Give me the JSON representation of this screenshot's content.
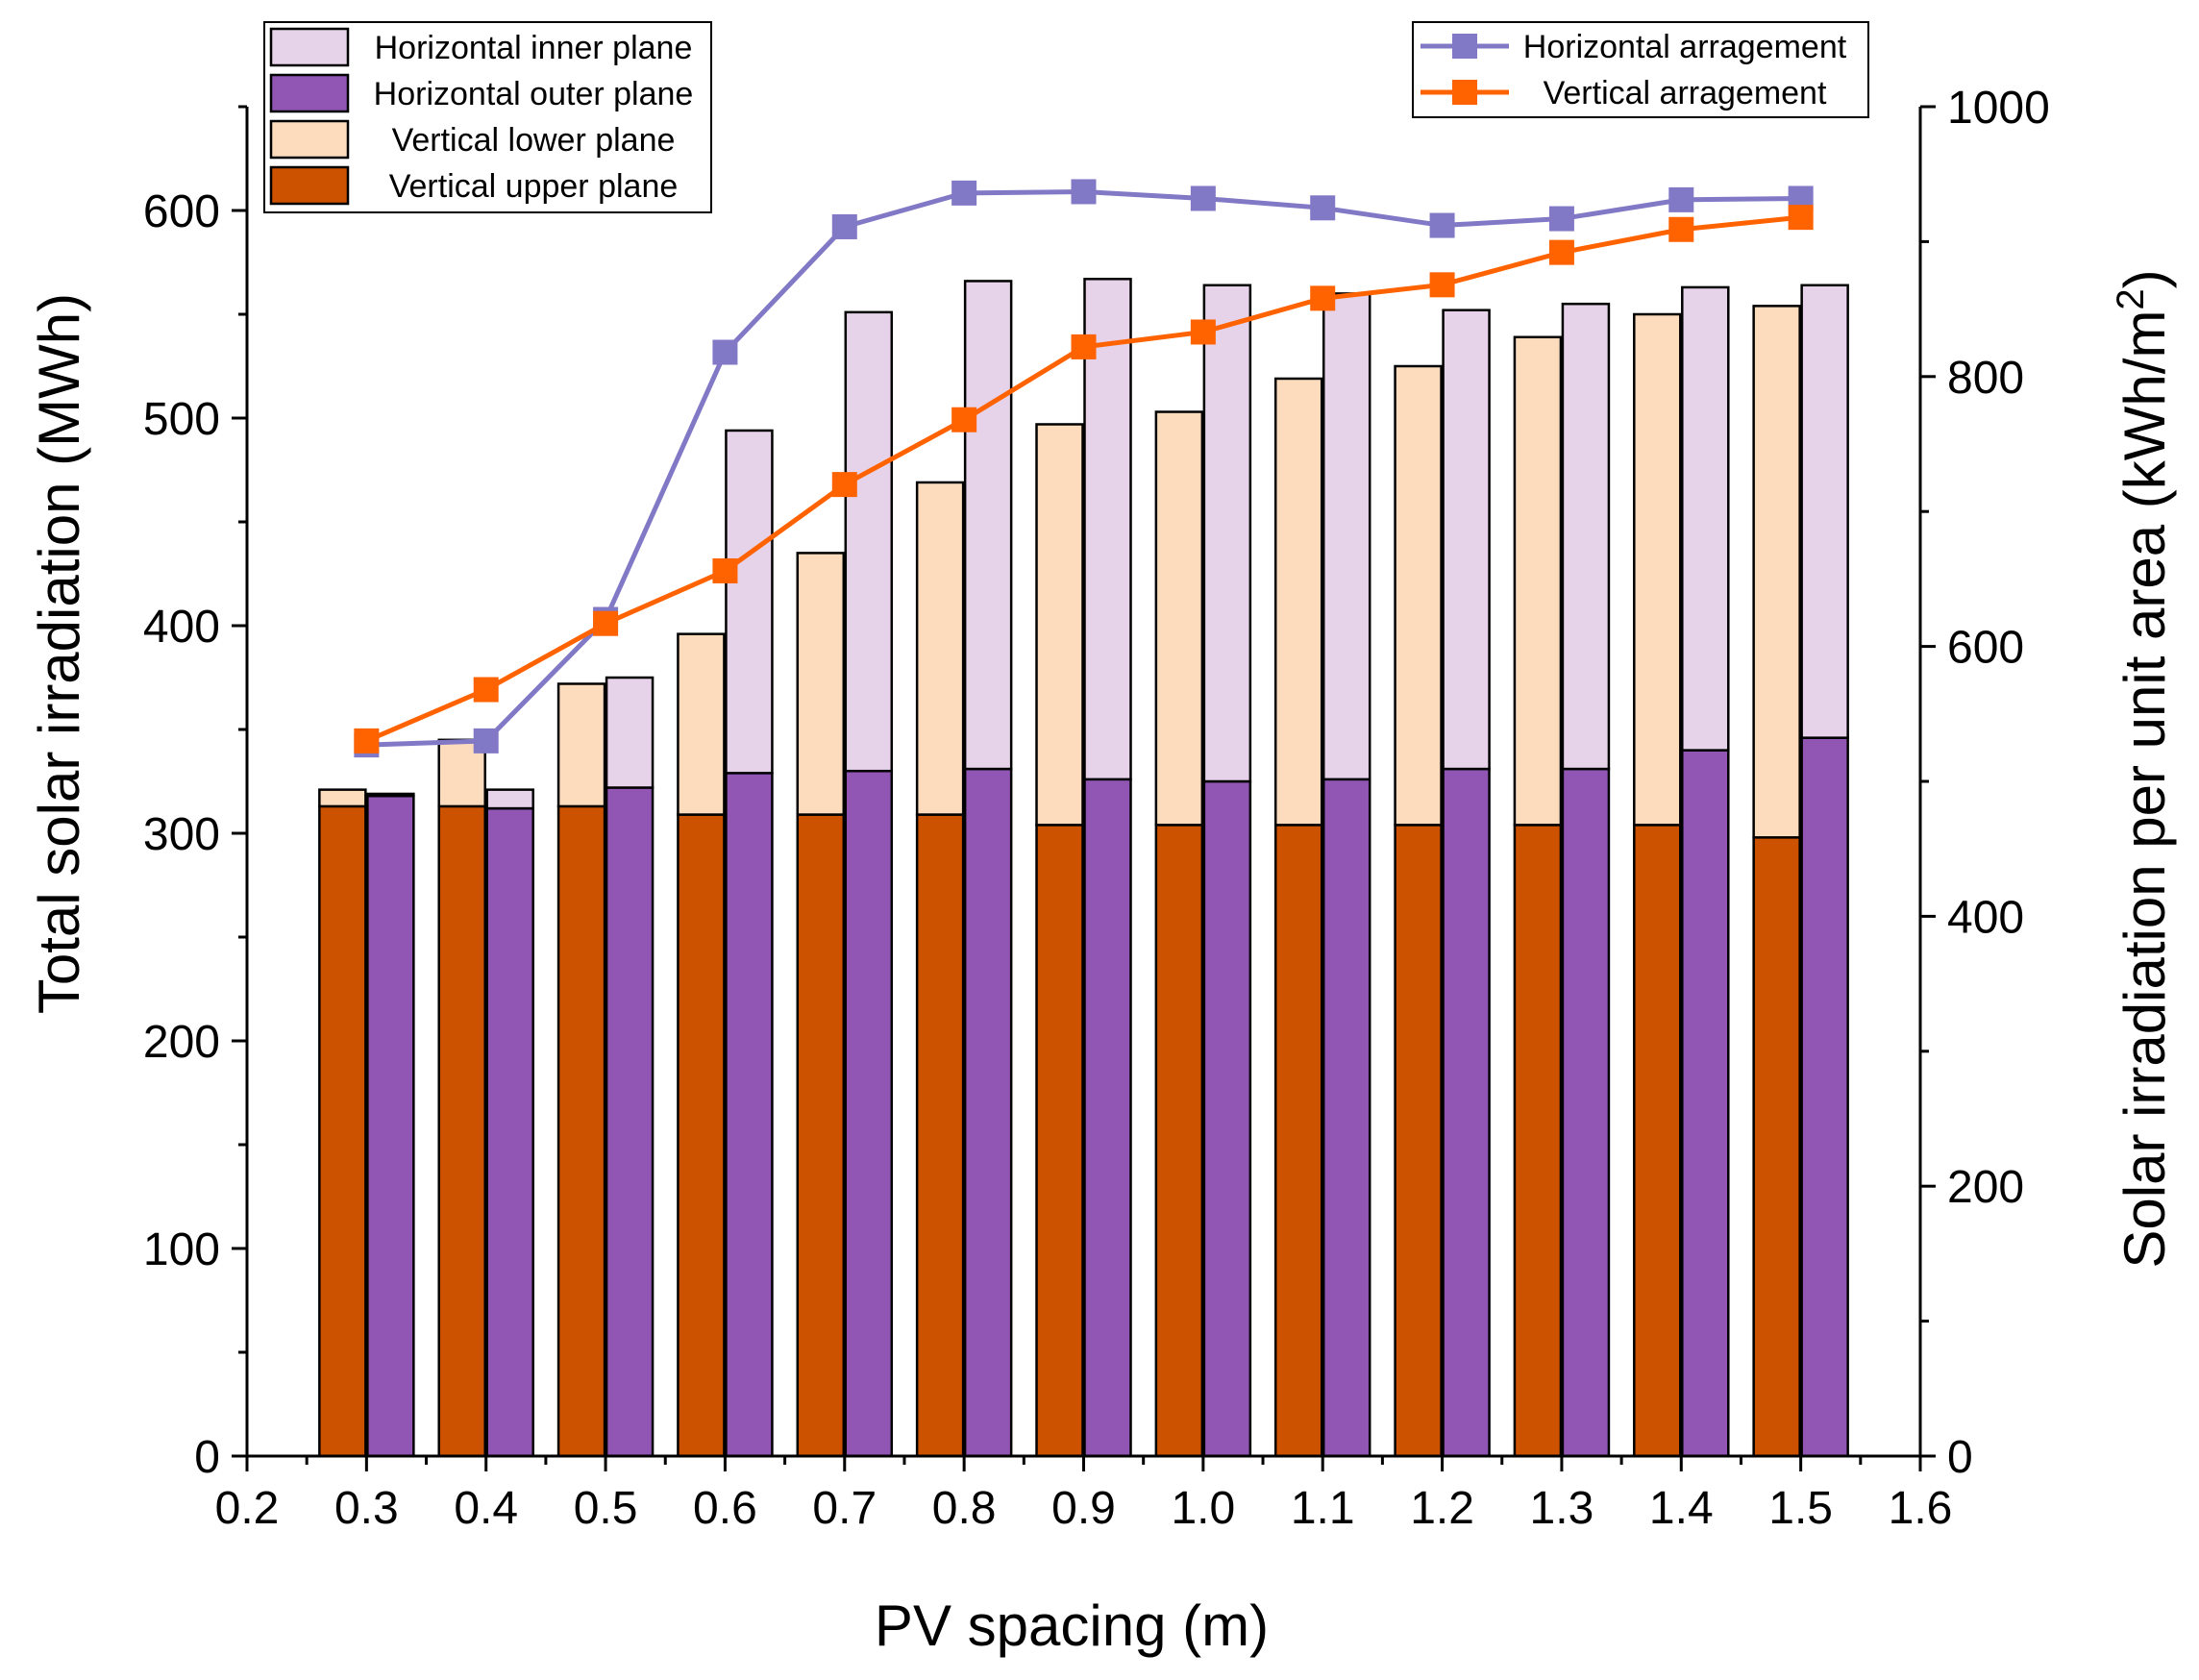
{
  "chart_data": {
    "type": "bar",
    "subtype": "stacked-grouped bar with dual-axis line overlay",
    "x": {
      "label": "PV spacing (m)",
      "range": [
        0.2,
        1.6
      ],
      "ticks": [
        0.2,
        0.3,
        0.4,
        0.5,
        0.6,
        0.7,
        0.8,
        0.9,
        1.0,
        1.1,
        1.2,
        1.3,
        1.4,
        1.5,
        1.6
      ],
      "tick_labels": [
        "0.2",
        "0.3",
        "0.4",
        "0.5",
        "0.6",
        "0.7",
        "0.8",
        "0.9",
        "1.0",
        "1.1",
        "1.2",
        "1.3",
        "1.4",
        "1.5",
        "1.6"
      ]
    },
    "y_left": {
      "label": "Total solar irradiation (MWh)",
      "range": [
        0,
        650
      ],
      "ticks": [
        0,
        100,
        200,
        300,
        400,
        500,
        600
      ],
      "tick_labels": [
        "0",
        "100",
        "200",
        "300",
        "400",
        "500",
        "600"
      ]
    },
    "y_right": {
      "label_main": "Solar irradiation per unit area (kWh/m",
      "label_sup": "2",
      "label_end": ")",
      "range": [
        0,
        1000
      ],
      "ticks": [
        0,
        200,
        400,
        600,
        800,
        1000
      ],
      "tick_labels": [
        "0",
        "200",
        "400",
        "600",
        "800",
        "1000"
      ]
    },
    "categories": [
      0.3,
      0.4,
      0.5,
      0.6,
      0.7,
      0.8,
      0.9,
      1.0,
      1.1,
      1.2,
      1.3,
      1.4,
      1.5
    ],
    "bar_series": [
      {
        "name": "Vertical upper plane",
        "group": "vertical",
        "color": "#cc5200",
        "values": [
          313,
          313,
          313,
          309,
          309,
          309,
          304,
          304,
          304,
          304,
          304,
          304,
          298
        ]
      },
      {
        "name": "Vertical lower plane",
        "group": "vertical",
        "color": "#fddcbd",
        "values": [
          8,
          32,
          59,
          87,
          126,
          160,
          193,
          199,
          215,
          221,
          235,
          246,
          256
        ]
      },
      {
        "name": "Horizontal outer plane",
        "group": "horizontal",
        "color": "#9155b3",
        "values": [
          318,
          312,
          322,
          329,
          330,
          331,
          326,
          325,
          326,
          331,
          331,
          340,
          346
        ]
      },
      {
        "name": "Horizontal inner plane",
        "group": "horizontal",
        "color": "#e6d2e9",
        "values": [
          1,
          9,
          53,
          165,
          221,
          235,
          241,
          239,
          234,
          221,
          224,
          223,
          218
        ]
      }
    ],
    "line_series": [
      {
        "name": "Horizontal arragement",
        "axis": "right",
        "color": "#8178c6",
        "values": [
          527,
          530,
          620,
          818,
          911,
          936,
          937,
          932,
          925,
          912,
          917,
          931,
          932
        ]
      },
      {
        "name": "Vertical arragement",
        "axis": "right",
        "color": "#ff6300",
        "values": [
          530,
          568,
          617,
          656,
          720,
          768,
          822,
          833,
          858,
          868,
          892,
          909,
          918
        ]
      }
    ],
    "legend_bars_order": [
      "Horizontal inner plane",
      "Horizontal outer plane",
      "Vertical lower plane",
      "Vertical upper plane"
    ],
    "legend_lines_order": [
      "Horizontal arragement",
      "Vertical arragement"
    ],
    "legend_bars_position": "top-left",
    "legend_lines_position": "top-right",
    "grid": false
  }
}
